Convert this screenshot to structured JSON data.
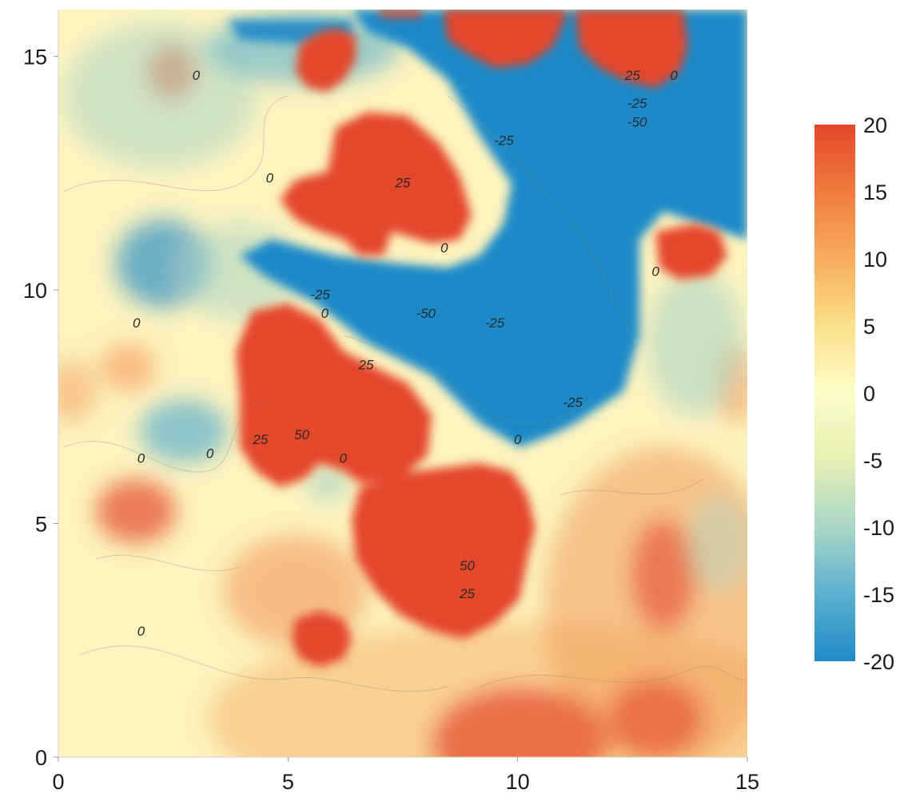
{
  "chart_data": {
    "type": "heatmap",
    "title": "",
    "xlabel": "",
    "ylabel": "",
    "xlim": [
      0,
      15
    ],
    "ylim": [
      0,
      16
    ],
    "x_ticks": [
      "0",
      "5",
      "10",
      "15"
    ],
    "y_ticks": [
      "0",
      "5",
      "10",
      "15"
    ],
    "x_tick_values": [
      0,
      5,
      10,
      15
    ],
    "y_tick_values": [
      0,
      5,
      10,
      15
    ],
    "colorbar": {
      "min": -20,
      "max": 20,
      "ticks": [
        "20",
        "15",
        "10",
        "5",
        "0",
        "-5",
        "-10",
        "-15",
        "-20"
      ],
      "tick_values": [
        20,
        15,
        10,
        5,
        0,
        -5,
        -10,
        -15,
        -20
      ],
      "colors": [
        "#1f8ac8",
        "#5cb0cf",
        "#a9d6c7",
        "#e6efb2",
        "#fdfcc8",
        "#fbe08a",
        "#f8ac5c",
        "#ef7b3e",
        "#e4472a"
      ]
    },
    "contour_labels": [
      {
        "x": 3.0,
        "y": 14.5,
        "text": "0"
      },
      {
        "x": 12.5,
        "y": 14.5,
        "text": "25"
      },
      {
        "x": 13.4,
        "y": 14.5,
        "text": "0"
      },
      {
        "x": 12.6,
        "y": 13.9,
        "text": "-25"
      },
      {
        "x": 12.6,
        "y": 13.5,
        "text": "-50"
      },
      {
        "x": 9.7,
        "y": 13.1,
        "text": "-25"
      },
      {
        "x": 4.6,
        "y": 12.3,
        "text": "0"
      },
      {
        "x": 7.5,
        "y": 12.2,
        "text": "25"
      },
      {
        "x": 8.4,
        "y": 10.8,
        "text": "0"
      },
      {
        "x": 13.0,
        "y": 10.3,
        "text": "0"
      },
      {
        "x": 5.7,
        "y": 9.8,
        "text": "-25"
      },
      {
        "x": 5.8,
        "y": 9.4,
        "text": "0"
      },
      {
        "x": 8.0,
        "y": 9.4,
        "text": "-50"
      },
      {
        "x": 9.5,
        "y": 9.2,
        "text": "-25"
      },
      {
        "x": 1.7,
        "y": 9.2,
        "text": "0"
      },
      {
        "x": 6.7,
        "y": 8.3,
        "text": "25"
      },
      {
        "x": 11.2,
        "y": 7.5,
        "text": "-25"
      },
      {
        "x": 5.3,
        "y": 6.8,
        "text": "50"
      },
      {
        "x": 4.4,
        "y": 6.7,
        "text": "25"
      },
      {
        "x": 10.0,
        "y": 6.7,
        "text": "0"
      },
      {
        "x": 1.8,
        "y": 6.3,
        "text": "0"
      },
      {
        "x": 3.3,
        "y": 6.4,
        "text": "0"
      },
      {
        "x": 6.2,
        "y": 6.3,
        "text": "0"
      },
      {
        "x": 8.9,
        "y": 4.0,
        "text": "50"
      },
      {
        "x": 8.9,
        "y": 3.4,
        "text": "25"
      },
      {
        "x": 1.8,
        "y": 2.6,
        "text": "0"
      }
    ]
  }
}
